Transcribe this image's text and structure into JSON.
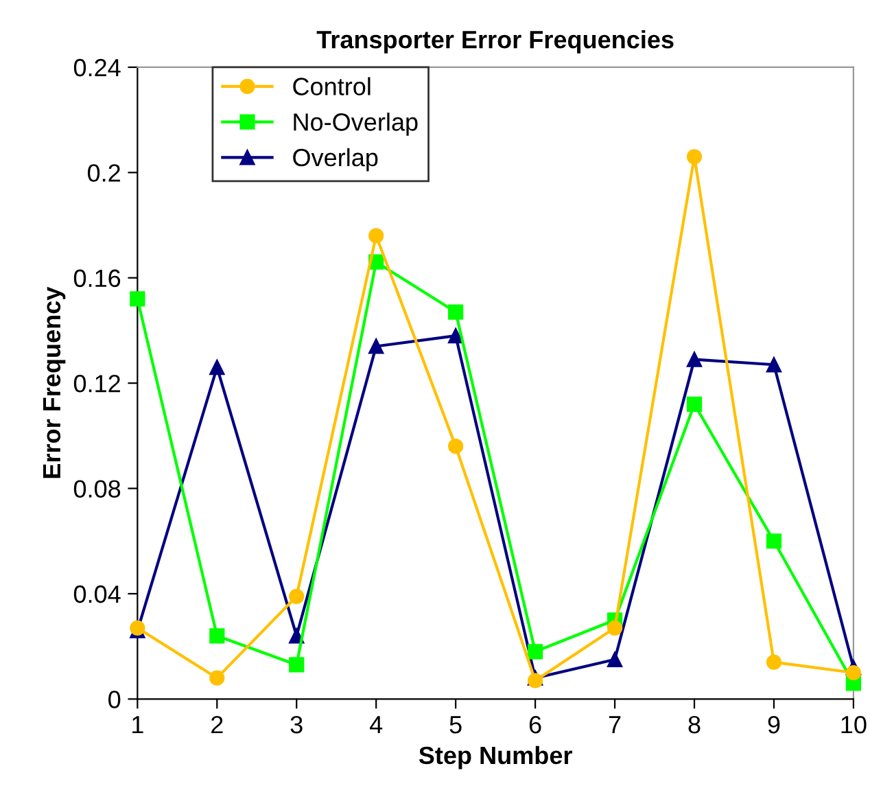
{
  "chart_data": {
    "type": "line",
    "title": "Transporter Error Frequencies",
    "xlabel": "Step Number",
    "ylabel": "Error Frequency",
    "x": [
      1,
      2,
      3,
      4,
      5,
      6,
      7,
      8,
      9,
      10
    ],
    "series": [
      {
        "name": "Control",
        "color": "#ffc000",
        "marker": "circle",
        "values": [
          0.027,
          0.008,
          0.039,
          0.176,
          0.096,
          0.007,
          0.027,
          0.206,
          0.014,
          0.01
        ]
      },
      {
        "name": "No-Overlap",
        "color": "#00ff00",
        "marker": "square",
        "values": [
          0.152,
          0.024,
          0.013,
          0.166,
          0.147,
          0.018,
          0.03,
          0.112,
          0.06,
          0.006
        ]
      },
      {
        "name": "Overlap",
        "color": "#000080",
        "marker": "triangle",
        "values": [
          0.026,
          0.126,
          0.024,
          0.134,
          0.138,
          0.008,
          0.015,
          0.129,
          0.127,
          0.012
        ]
      }
    ],
    "xlim": [
      1,
      10
    ],
    "xticks": [
      1,
      2,
      3,
      4,
      5,
      6,
      7,
      8,
      9,
      10
    ],
    "ylim": [
      0,
      0.24
    ],
    "yticks": [
      0,
      0.04,
      0.08,
      0.12,
      0.16,
      0.2,
      0.24
    ],
    "grid": false,
    "legend": "top left"
  }
}
